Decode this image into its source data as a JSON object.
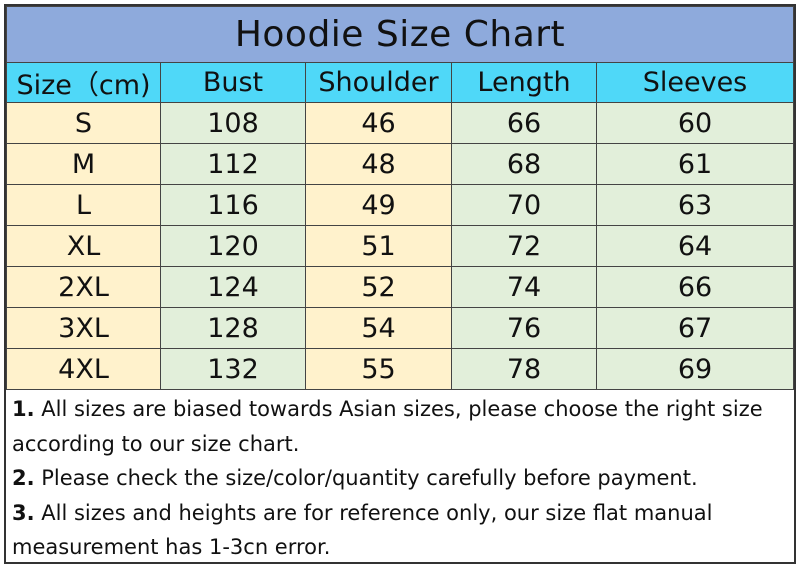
{
  "title": "Hoodie Size Chart",
  "headers": [
    "Size（cm)",
    "Bust",
    "Shoulder",
    "Length",
    "Sleeves"
  ],
  "rows": [
    [
      "S",
      "108",
      "46",
      "66",
      "60"
    ],
    [
      "M",
      "112",
      "48",
      "68",
      "61"
    ],
    [
      "L",
      "116",
      "49",
      "70",
      "63"
    ],
    [
      "XL",
      "120",
      "51",
      "72",
      "64"
    ],
    [
      "2XL",
      "124",
      "52",
      "74",
      "66"
    ],
    [
      "3XL",
      "128",
      "54",
      "76",
      "67"
    ],
    [
      "4XL",
      "132",
      "55",
      "78",
      "69"
    ]
  ],
  "notes": [
    {
      "num": "1.",
      "text": " All sizes are biased towards Asian sizes, please choose the right size according to our size chart."
    },
    {
      "num": "2.",
      "text": " Please check the size/color/quantity carefully before payment."
    },
    {
      "num": "3.",
      "text": " All sizes and heights are for reference only, our size flat manual measurement has 1-3cn error."
    }
  ],
  "colors": {
    "title_bg": "#8eaadc",
    "header_bg": "#4fd8f8",
    "yellow": "#fff2cc",
    "green": "#e2efda"
  }
}
